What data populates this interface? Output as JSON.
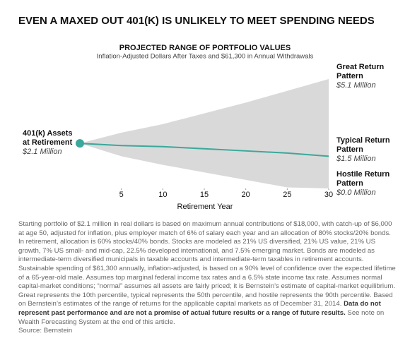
{
  "chart_data": {
    "type": "range",
    "title": "EVEN A MAXED OUT 401(K) IS UNLIKELY TO MEET SPENDING NEEDS",
    "chart_title": "PROJECTED RANGE OF PORTFOLIO VALUES",
    "subtitle": "Inflation-Adjusted Dollars After Taxes and $61,300 in Annual Withdrawals",
    "x_label": "Retirement Year",
    "x": [
      0,
      5,
      10,
      15,
      20,
      25,
      30
    ],
    "xlim": [
      0,
      30
    ],
    "xticks": [
      5,
      10,
      15,
      20,
      25,
      30
    ],
    "ylim": [
      0,
      5.1
    ],
    "start_label": "401(k) Assets at Retirement",
    "start_value": 2.1,
    "start_value_label": "$2.1 Million",
    "series": [
      {
        "name": "Great Return Pattern",
        "color": "#d9d9d9",
        "values": [
          2.1,
          2.6,
          3.0,
          3.5,
          4.0,
          4.55,
          5.1
        ],
        "end_label": "$5.1 Million"
      },
      {
        "name": "Typical Return Pattern",
        "color": "#3aa89a",
        "values": [
          2.1,
          2.0,
          1.95,
          1.85,
          1.75,
          1.65,
          1.5
        ],
        "end_label": "$1.5 Million"
      },
      {
        "name": "Hostile Return Pattern",
        "color": "#ffffff",
        "values": [
          2.1,
          1.5,
          1.1,
          0.75,
          0.4,
          0.05,
          0.0
        ],
        "end_label": "$0.0 Million"
      }
    ],
    "footnote": "Starting portfolio of $2.1 million in real dollars is based on maximum annual contributions of $18,000, with catch-up of $6,000 at age 50, adjusted for inflation, plus employer match of 6% of salary each year and an allocation of 80% stocks/20% bonds. In retirement, allocation is 60% stocks/40% bonds. Stocks are modeled as 21% US diversified, 21% US value, 21% US growth, 7% US small- and mid-cap, 22.5% developed international, and 7.5% emerging market. Bonds are modeled as intermediate-term diversified municipals in taxable accounts and intermediate-term taxables in retirement accounts. Sustainable spending of $61,300 annually, inflation-adjusted, is based on a 90% level of confidence over the expected lifetime of a 65-year-old male. Assumes top marginal federal income tax rates and a 6.5% state income tax rate. Assumes normal capital-market conditions; “normal” assumes all assets are fairly priced; it is Bernstein’s estimate of capital-market equilibrium. Great represents the 10th percentile, typical represents the 50th percentile, and hostile represents the 90th percentile. Based on Bernstein’s estimates of the range of returns for the applicable capital markets as of December 31, 2014.",
    "footnote_bold": "Data do not represent past performance and are not a promise of actual future results or a range of future results.",
    "footnote_end": "See note on Wealth Forecasting System at the end of this article.",
    "source": "Source: Bernstein"
  }
}
